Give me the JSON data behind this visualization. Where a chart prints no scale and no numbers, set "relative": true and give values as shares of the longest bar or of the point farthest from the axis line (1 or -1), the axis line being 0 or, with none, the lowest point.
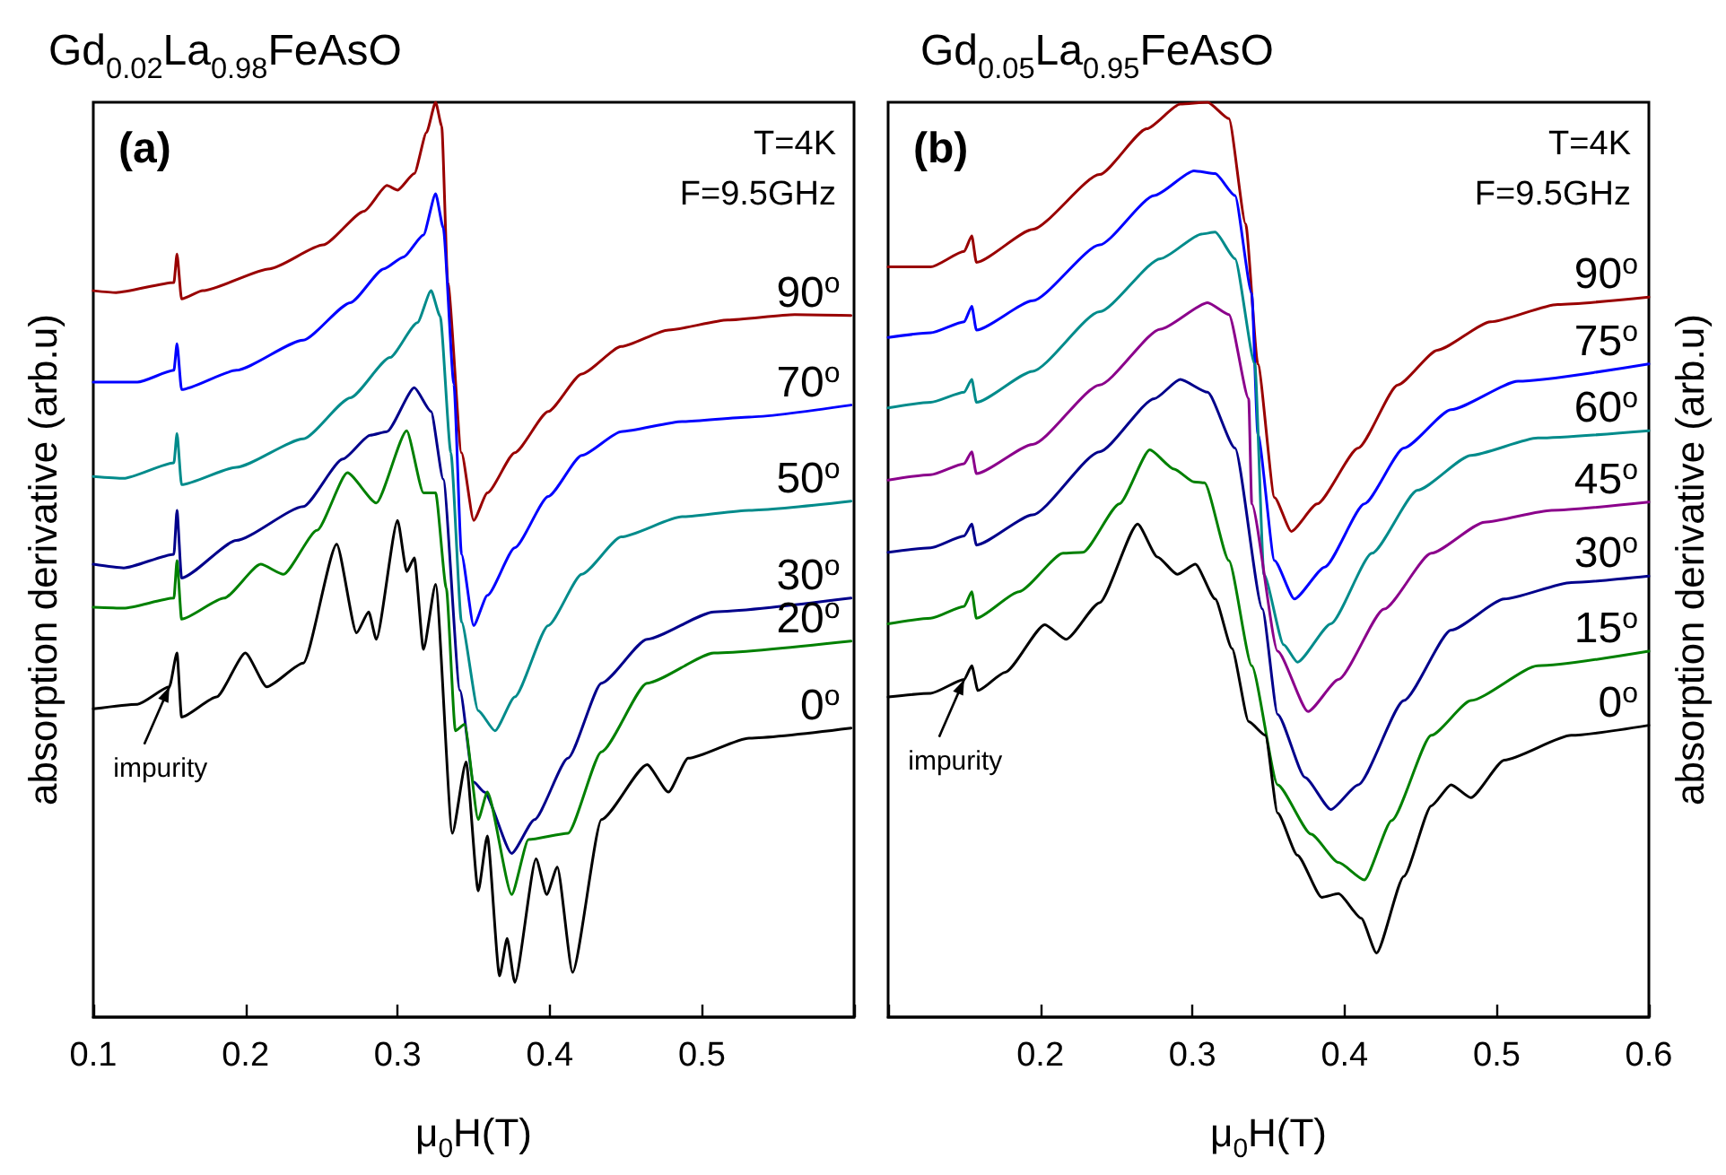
{
  "chart_data": [
    {
      "type": "line",
      "title": "Gd$_{0.02}$La$_{0.98}$FeAsO",
      "xlabel": "μ$_{0}$H(T)",
      "ylabel": "absorption derivative (arb.u)",
      "relative": true,
      "xlim": [
        0.1,
        0.6
      ],
      "xticks": [
        0.1,
        0.2,
        0.3,
        0.4,
        0.5,
        {
          "value": 0.6,
          "label": null
        }
      ],
      "annotations": [
        "(a)",
        "T=4K",
        "F=9.5GHz",
        {
          "text": "impurity",
          "x": 0.15,
          "y": 0.361
        }
      ],
      "series": [
        {
          "name": "90$^{o}$",
          "color": "#990000",
          "x": [
            0.1,
            0.115,
            0.153,
            0.155,
            0.158,
            0.172,
            0.216,
            0.251,
            0.278,
            0.293,
            0.3,
            0.311,
            0.319,
            0.325,
            0.329,
            0.333,
            0.342,
            0.35,
            0.359,
            0.377,
            0.399,
            0.421,
            0.447,
            0.478,
            0.517,
            0.561,
            0.598
          ],
          "values": [
            0.794,
            0.792,
            0.803,
            0.834,
            0.785,
            0.794,
            0.818,
            0.844,
            0.881,
            0.909,
            0.904,
            0.922,
            0.967,
            1.0,
            0.974,
            0.803,
            0.617,
            0.543,
            0.573,
            0.617,
            0.662,
            0.703,
            0.733,
            0.751,
            0.762,
            0.768,
            0.767
          ]
        },
        {
          "name": "70$^{o}$",
          "color": "#0000ff",
          "x": [
            0.1,
            0.129,
            0.153,
            0.155,
            0.158,
            0.194,
            0.238,
            0.269,
            0.291,
            0.304,
            0.317,
            0.325,
            0.33,
            0.337,
            0.342,
            0.35,
            0.359,
            0.377,
            0.399,
            0.421,
            0.447,
            0.487,
            0.531,
            0.598
          ],
          "values": [
            0.694,
            0.694,
            0.707,
            0.736,
            0.686,
            0.707,
            0.74,
            0.781,
            0.818,
            0.831,
            0.855,
            0.9,
            0.863,
            0.692,
            0.506,
            0.428,
            0.461,
            0.513,
            0.569,
            0.614,
            0.64,
            0.651,
            0.656,
            0.669
          ]
        },
        {
          "name": "50$^{o}$",
          "color": "#008b8b",
          "x": [
            0.1,
            0.12,
            0.153,
            0.155,
            0.158,
            0.194,
            0.238,
            0.269,
            0.295,
            0.313,
            0.322,
            0.328,
            0.335,
            0.342,
            0.353,
            0.364,
            0.377,
            0.399,
            0.421,
            0.447,
            0.487,
            0.531,
            0.598
          ],
          "values": [
            0.591,
            0.589,
            0.606,
            0.638,
            0.582,
            0.601,
            0.632,
            0.677,
            0.721,
            0.759,
            0.794,
            0.766,
            0.617,
            0.432,
            0.335,
            0.313,
            0.35,
            0.428,
            0.484,
            0.525,
            0.547,
            0.554,
            0.564
          ]
        },
        {
          "name": "30$^{o}$",
          "color": "#00008b",
          "x": [
            0.1,
            0.12,
            0.153,
            0.155,
            0.158,
            0.194,
            0.238,
            0.264,
            0.282,
            0.293,
            0.311,
            0.322,
            0.33,
            0.341,
            0.35,
            0.357,
            0.375,
            0.39,
            0.412,
            0.434,
            0.464,
            0.508,
            0.598
          ],
          "values": [
            0.495,
            0.491,
            0.506,
            0.554,
            0.48,
            0.521,
            0.558,
            0.61,
            0.636,
            0.64,
            0.688,
            0.662,
            0.588,
            0.357,
            0.257,
            0.246,
            0.179,
            0.216,
            0.283,
            0.365,
            0.413,
            0.443,
            0.458
          ]
        },
        {
          "name": "20$^{o}$",
          "color": "#008000",
          "x": [
            0.1,
            0.12,
            0.153,
            0.155,
            0.158,
            0.186,
            0.21,
            0.225,
            0.247,
            0.267,
            0.286,
            0.306,
            0.317,
            0.325,
            0.332,
            0.338,
            0.344,
            0.353,
            0.359,
            0.375,
            0.386,
            0.412,
            0.434,
            0.464,
            0.508,
            0.598
          ],
          "values": [
            0.448,
            0.447,
            0.458,
            0.499,
            0.435,
            0.458,
            0.495,
            0.484,
            0.532,
            0.595,
            0.562,
            0.641,
            0.573,
            0.573,
            0.469,
            0.313,
            0.32,
            0.216,
            0.246,
            0.134,
            0.194,
            0.201,
            0.29,
            0.365,
            0.398,
            0.411
          ]
        },
        {
          "name": "0$^{o}$",
          "color": "#000000",
          "x": [
            0.1,
            0.129,
            0.15,
            0.155,
            0.158,
            0.181,
            0.2,
            0.214,
            0.238,
            0.26,
            0.273,
            0.281,
            0.286,
            0.3,
            0.306,
            0.311,
            0.317,
            0.325,
            0.336,
            0.345,
            0.353,
            0.359,
            0.367,
            0.372,
            0.377,
            0.391,
            0.398,
            0.405,
            0.415,
            0.434,
            0.464,
            0.478,
            0.491,
            0.531,
            0.598
          ],
          "values": [
            0.337,
            0.342,
            0.361,
            0.398,
            0.328,
            0.35,
            0.398,
            0.361,
            0.387,
            0.517,
            0.42,
            0.443,
            0.413,
            0.543,
            0.487,
            0.502,
            0.402,
            0.473,
            0.201,
            0.279,
            0.138,
            0.198,
            0.045,
            0.086,
            0.038,
            0.173,
            0.134,
            0.164,
            0.049,
            0.216,
            0.276,
            0.246,
            0.283,
            0.305,
            0.316
          ]
        }
      ]
    },
    {
      "type": "line",
      "title": "Gd$_{0.05}$La$_{0.95}$FeAsO",
      "xlabel": "μ$_{0}$H(T)",
      "y2label": "absorption derivative (arb.u)",
      "relative": true,
      "xlim": [
        0.1,
        0.6
      ],
      "xticks": [
        {
          "value": 0.1,
          "label": null
        },
        0.2,
        0.3,
        0.4,
        0.5,
        0.6
      ],
      "annotations": [
        "(b)",
        "T=4K",
        "F=9.5GHz",
        {
          "text": "impurity",
          "x": 0.15,
          "y": 0.369
        }
      ],
      "series": [
        {
          "name": "90$^{o}$",
          "color": "#990000",
          "x": [
            0.1,
            0.128,
            0.15,
            0.155,
            0.158,
            0.195,
            0.239,
            0.27,
            0.292,
            0.31,
            0.324,
            0.335,
            0.343,
            0.354,
            0.365,
            0.382,
            0.409,
            0.435,
            0.461,
            0.496,
            0.54,
            0.6
          ],
          "values": [
            0.82,
            0.82,
            0.837,
            0.854,
            0.825,
            0.861,
            0.921,
            0.971,
            0.998,
            1.0,
            0.982,
            0.867,
            0.714,
            0.568,
            0.531,
            0.561,
            0.622,
            0.691,
            0.729,
            0.76,
            0.779,
            0.787
          ]
        },
        {
          "name": "75$^{o}$",
          "color": "#0000ff",
          "x": [
            0.1,
            0.128,
            0.15,
            0.155,
            0.158,
            0.195,
            0.239,
            0.275,
            0.301,
            0.315,
            0.328,
            0.339,
            0.343,
            0.354,
            0.367,
            0.387,
            0.413,
            0.439,
            0.47,
            0.514,
            0.6
          ],
          "values": [
            0.743,
            0.748,
            0.76,
            0.777,
            0.751,
            0.783,
            0.844,
            0.898,
            0.925,
            0.922,
            0.898,
            0.791,
            0.637,
            0.499,
            0.457,
            0.492,
            0.561,
            0.622,
            0.664,
            0.695,
            0.714
          ]
        },
        {
          "name": "60$^{o}$",
          "color": "#008b8b",
          "x": [
            0.1,
            0.128,
            0.15,
            0.155,
            0.158,
            0.195,
            0.239,
            0.279,
            0.306,
            0.315,
            0.328,
            0.341,
            0.347,
            0.36,
            0.369,
            0.391,
            0.418,
            0.448,
            0.483,
            0.527,
            0.6
          ],
          "values": [
            0.666,
            0.672,
            0.683,
            0.697,
            0.672,
            0.706,
            0.771,
            0.829,
            0.856,
            0.858,
            0.829,
            0.714,
            0.484,
            0.407,
            0.388,
            0.43,
            0.507,
            0.576,
            0.614,
            0.633,
            0.641
          ]
        },
        {
          "name": "45$^{o}$",
          "color": "#8b008b",
          "x": [
            0.1,
            0.128,
            0.15,
            0.155,
            0.158,
            0.195,
            0.239,
            0.279,
            0.31,
            0.324,
            0.337,
            0.339,
            0.356,
            0.376,
            0.396,
            0.426,
            0.457,
            0.492,
            0.536,
            0.6
          ],
          "values": [
            0.587,
            0.593,
            0.605,
            0.618,
            0.594,
            0.626,
            0.691,
            0.752,
            0.781,
            0.768,
            0.676,
            0.561,
            0.4,
            0.334,
            0.369,
            0.446,
            0.507,
            0.541,
            0.554,
            0.563
          ]
        },
        {
          "name": "30$^{o}$",
          "color": "#00008b",
          "x": [
            0.1,
            0.128,
            0.15,
            0.155,
            0.158,
            0.195,
            0.239,
            0.275,
            0.292,
            0.31,
            0.328,
            0.346,
            0.356,
            0.374,
            0.391,
            0.409,
            0.439,
            0.47,
            0.505,
            0.549,
            0.6
          ],
          "values": [
            0.508,
            0.513,
            0.526,
            0.539,
            0.516,
            0.549,
            0.618,
            0.676,
            0.697,
            0.683,
            0.622,
            0.446,
            0.331,
            0.262,
            0.227,
            0.254,
            0.346,
            0.423,
            0.457,
            0.475,
            0.482
          ]
        },
        {
          "name": "15$^{o}$",
          "color": "#008000",
          "x": [
            0.1,
            0.128,
            0.15,
            0.155,
            0.158,
            0.186,
            0.215,
            0.228,
            0.252,
            0.272,
            0.288,
            0.301,
            0.308,
            0.324,
            0.339,
            0.356,
            0.378,
            0.396,
            0.413,
            0.431,
            0.457,
            0.483,
            0.527,
            0.6
          ],
          "values": [
            0.43,
            0.436,
            0.449,
            0.465,
            0.436,
            0.465,
            0.507,
            0.508,
            0.561,
            0.62,
            0.599,
            0.585,
            0.584,
            0.499,
            0.384,
            0.254,
            0.2,
            0.169,
            0.15,
            0.215,
            0.308,
            0.346,
            0.384,
            0.4
          ]
        },
        {
          "name": "0$^{o}$",
          "color": "#000000",
          "x": [
            0.1,
            0.128,
            0.15,
            0.155,
            0.159,
            0.177,
            0.203,
            0.217,
            0.239,
            0.264,
            0.277,
            0.29,
            0.302,
            0.315,
            0.326,
            0.337,
            0.348,
            0.356,
            0.369,
            0.385,
            0.396,
            0.411,
            0.421,
            0.439,
            0.457,
            0.47,
            0.483,
            0.505,
            0.549,
            0.6
          ],
          "values": [
            0.35,
            0.354,
            0.369,
            0.384,
            0.357,
            0.377,
            0.429,
            0.413,
            0.453,
            0.539,
            0.503,
            0.484,
            0.495,
            0.457,
            0.403,
            0.323,
            0.308,
            0.223,
            0.177,
            0.131,
            0.135,
            0.108,
            0.07,
            0.154,
            0.231,
            0.254,
            0.24,
            0.281,
            0.308,
            0.319
          ]
        }
      ]
    }
  ]
}
